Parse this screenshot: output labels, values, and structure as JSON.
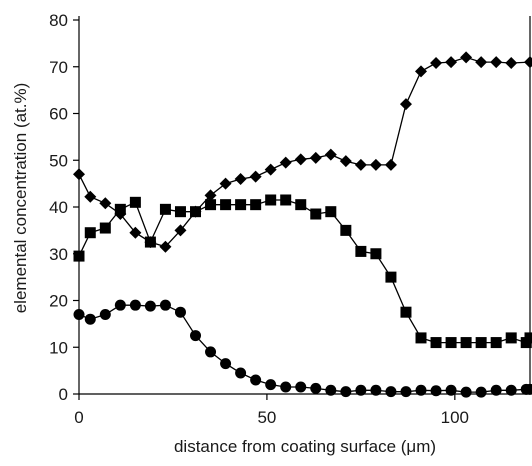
{
  "chart_data": {
    "type": "line",
    "title": "",
    "xlabel": "distance from coating surface (μm)",
    "ylabel": "elemental concentration (at.%)",
    "xlim": [
      0,
      120
    ],
    "ylim": [
      0,
      80
    ],
    "x_ticks": [
      0,
      50,
      100
    ],
    "y_ticks": [
      0,
      10,
      20,
      30,
      40,
      50,
      60,
      70,
      80
    ],
    "grid": false,
    "legend": "none",
    "series": [
      {
        "marker": "diamond",
        "color": "#000000",
        "points": [
          [
            0,
            47
          ],
          [
            3,
            42.2
          ],
          [
            7,
            40.8
          ],
          [
            11,
            38.5
          ],
          [
            15,
            34.5
          ],
          [
            19,
            32.5
          ],
          [
            23,
            31.5
          ],
          [
            27,
            35
          ],
          [
            31,
            39
          ],
          [
            35,
            42.5
          ],
          [
            39,
            45
          ],
          [
            43,
            46
          ],
          [
            47,
            46.5
          ],
          [
            51,
            48
          ],
          [
            55,
            49.5
          ],
          [
            59,
            50.2
          ],
          [
            63,
            50.5
          ],
          [
            67,
            51.2
          ],
          [
            71,
            49.8
          ],
          [
            75,
            49
          ],
          [
            79,
            49
          ],
          [
            83,
            49
          ],
          [
            87,
            62
          ],
          [
            91,
            69
          ],
          [
            95,
            70.8
          ],
          [
            99,
            71
          ],
          [
            103,
            72
          ],
          [
            107,
            71
          ],
          [
            111,
            71
          ],
          [
            115,
            70.8
          ],
          [
            120,
            71
          ]
        ]
      },
      {
        "marker": "square",
        "color": "#000000",
        "points": [
          [
            0,
            29.5
          ],
          [
            3,
            34.5
          ],
          [
            7,
            35.5
          ],
          [
            11,
            39.5
          ],
          [
            15,
            41
          ],
          [
            19,
            32.5
          ],
          [
            23,
            39.5
          ],
          [
            27,
            39
          ],
          [
            31,
            39
          ],
          [
            35,
            40.5
          ],
          [
            39,
            40.5
          ],
          [
            43,
            40.5
          ],
          [
            47,
            40.5
          ],
          [
            51,
            41.5
          ],
          [
            55,
            41.5
          ],
          [
            59,
            40.5
          ],
          [
            63,
            38.5
          ],
          [
            67,
            39
          ],
          [
            71,
            35
          ],
          [
            75,
            30.5
          ],
          [
            79,
            30
          ],
          [
            83,
            25
          ],
          [
            87,
            17.5
          ],
          [
            91,
            12
          ],
          [
            95,
            11
          ],
          [
            99,
            11
          ],
          [
            103,
            11
          ],
          [
            107,
            11
          ],
          [
            111,
            11
          ],
          [
            115,
            12
          ],
          [
            119,
            11
          ],
          [
            121,
            12
          ]
        ]
      },
      {
        "marker": "circle",
        "color": "#000000",
        "points": [
          [
            0,
            17
          ],
          [
            3,
            16
          ],
          [
            7,
            17
          ],
          [
            11,
            19
          ],
          [
            15,
            19
          ],
          [
            19,
            18.8
          ],
          [
            23,
            19
          ],
          [
            27,
            17.5
          ],
          [
            31,
            12.5
          ],
          [
            35,
            9
          ],
          [
            39,
            6.5
          ],
          [
            43,
            4.5
          ],
          [
            47,
            3
          ],
          [
            51,
            2
          ],
          [
            55,
            1.5
          ],
          [
            59,
            1.5
          ],
          [
            63,
            1.2
          ],
          [
            67,
            0.8
          ],
          [
            71,
            0.5
          ],
          [
            75,
            0.8
          ],
          [
            79,
            0.8
          ],
          [
            83,
            0.5
          ],
          [
            87,
            0.5
          ],
          [
            91,
            0.8
          ],
          [
            95,
            0.7
          ],
          [
            99,
            0.8
          ],
          [
            103,
            0.4
          ],
          [
            107,
            0.4
          ],
          [
            111,
            0.8
          ],
          [
            115,
            0.8
          ],
          [
            119,
            1
          ],
          [
            121,
            1
          ]
        ]
      }
    ]
  }
}
